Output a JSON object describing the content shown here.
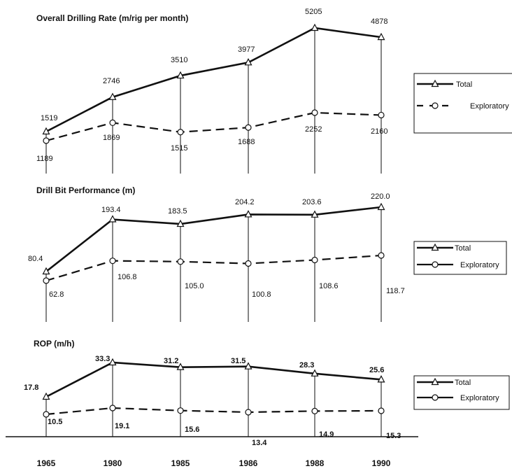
{
  "years": [
    "1965",
    "1980",
    "1985",
    "1986",
    "1988",
    "1990"
  ],
  "chart_data": [
    {
      "type": "line",
      "title": "Overall Drilling Rate (m/rig per month)",
      "categories": [
        "1965",
        "1980",
        "1985",
        "1986",
        "1988",
        "1990"
      ],
      "series": [
        {
          "name": "Total",
          "values": [
            1519,
            2746,
            3510,
            3977,
            5205,
            4878
          ],
          "labels": [
            "1519",
            "2746",
            "3510",
            "3977",
            "5205",
            "4878"
          ],
          "marker": "triangle",
          "style": "solid"
        },
        {
          "name": "Exploratory",
          "values": [
            1189,
            1869,
            1515,
            1688,
            2252,
            2160
          ],
          "labels": [
            "1189",
            "1869",
            "1515",
            "1688",
            "2252",
            "2160"
          ],
          "marker": "circle",
          "style": "dashed"
        }
      ],
      "legend": "right"
    },
    {
      "type": "line",
      "title": "Drill Bit Performance (m)",
      "categories": [
        "1965",
        "1980",
        "1985",
        "1986",
        "1988",
        "1990"
      ],
      "series": [
        {
          "name": "Total",
          "values": [
            80.4,
            193.4,
            183.5,
            204.2,
            203.6,
            220.0
          ],
          "labels": [
            "80.4",
            "193.4",
            "183.5",
            "204.2",
            "203.6",
            "220.0"
          ],
          "marker": "triangle",
          "style": "solid"
        },
        {
          "name": "Exploratory",
          "values": [
            62.8,
            106.8,
            105.0,
            100.8,
            108.6,
            118.7
          ],
          "labels": [
            "62.8",
            "106.8",
            "105.0",
            "100.8",
            "108.6",
            "118.7"
          ],
          "marker": "circle",
          "style": "dashed"
        }
      ],
      "legend": "right"
    },
    {
      "type": "line",
      "title": "ROP (m/h)",
      "categories": [
        "1965",
        "1980",
        "1985",
        "1986",
        "1988",
        "1990"
      ],
      "series": [
        {
          "name": "Total",
          "values": [
            17.8,
            33.3,
            31.2,
            31.5,
            28.3,
            25.6
          ],
          "labels": [
            "17.8",
            "33.3",
            "31.2",
            "31.5",
            "28.3",
            "25.6"
          ],
          "marker": "triangle",
          "style": "solid"
        },
        {
          "name": "Exploratory",
          "values": [
            10.5,
            19.1,
            15.6,
            13.4,
            14.9,
            15.3
          ],
          "labels": [
            "10.5",
            "19.1",
            "15.6",
            "13.4",
            "14.9",
            "15.3"
          ],
          "marker": "circle",
          "style": "dashed"
        }
      ],
      "legend": "right"
    }
  ]
}
